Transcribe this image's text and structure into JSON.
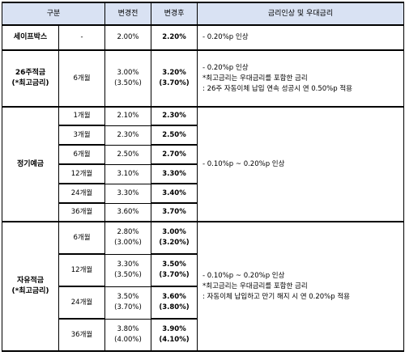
{
  "header": {
    "category": "구분",
    "before": "변경전",
    "after": "변경후",
    "change": "금리인상 및 우대금리"
  },
  "safe_box": {
    "name": "세이프박스",
    "period": "-",
    "before": "2.00%",
    "after": "2.20%",
    "desc": "- 0.20%p 인상"
  },
  "week26": {
    "name_line1": "26주적금",
    "name_line2": "(*최고금리)",
    "period": "6개월",
    "before_line1": "3.00%",
    "before_line2": "(3.50%)",
    "after_line1": "3.20%",
    "after_line2": "(3.70%)",
    "desc_line1": "- 0.20%p 인상",
    "desc_line2": "*최고금리는 우대금리를 포함한 금리",
    "desc_line3": ": 26주 자동이체 납입 연속 성공시 연 0.50%p 적용"
  },
  "deposit": {
    "name": "정기예금",
    "desc": "- 0.10%p ~ 0.20%p 인상",
    "rows": [
      {
        "period": "1개월",
        "before": "2.10%",
        "after": "2.30%"
      },
      {
        "period": "3개월",
        "before": "2.30%",
        "after": "2.50%"
      },
      {
        "period": "6개월",
        "before": "2.50%",
        "after": "2.70%"
      },
      {
        "period": "12개월",
        "before": "3.10%",
        "after": "3.30%"
      },
      {
        "period": "24개월",
        "before": "3.30%",
        "after": "3.40%"
      },
      {
        "period": "36개월",
        "before": "3.60%",
        "after": "3.70%"
      }
    ]
  },
  "free_savings": {
    "name_line1": "자유적금",
    "name_line2": "(*최고금리)",
    "desc_line1": "- 0.10%p ~ 0.20%p 인상",
    "desc_line2": "*최고금리는 우대금리를 포함한 금리",
    "desc_line3": ": 자동이체 납입하고 만기 해지 시 연 0.20%p 적용",
    "rows": [
      {
        "period": "6개월",
        "before1": "2.80%",
        "before2": "(3.00%)",
        "after1": "3.00%",
        "after2": "(3.20%)"
      },
      {
        "period": "12개월",
        "before1": "3.30%",
        "before2": "(3.50%)",
        "after1": "3.50%",
        "after2": "(3.70%)"
      },
      {
        "period": "24개월",
        "before1": "3.50%",
        "before2": "(3.70%)",
        "after1": "3.60%",
        "after2": "(3.80%)"
      },
      {
        "period": "36개월",
        "before1": "3.80%",
        "before2": "(4.00%)",
        "after1": "3.90%",
        "after2": "(4.10%)"
      }
    ]
  }
}
